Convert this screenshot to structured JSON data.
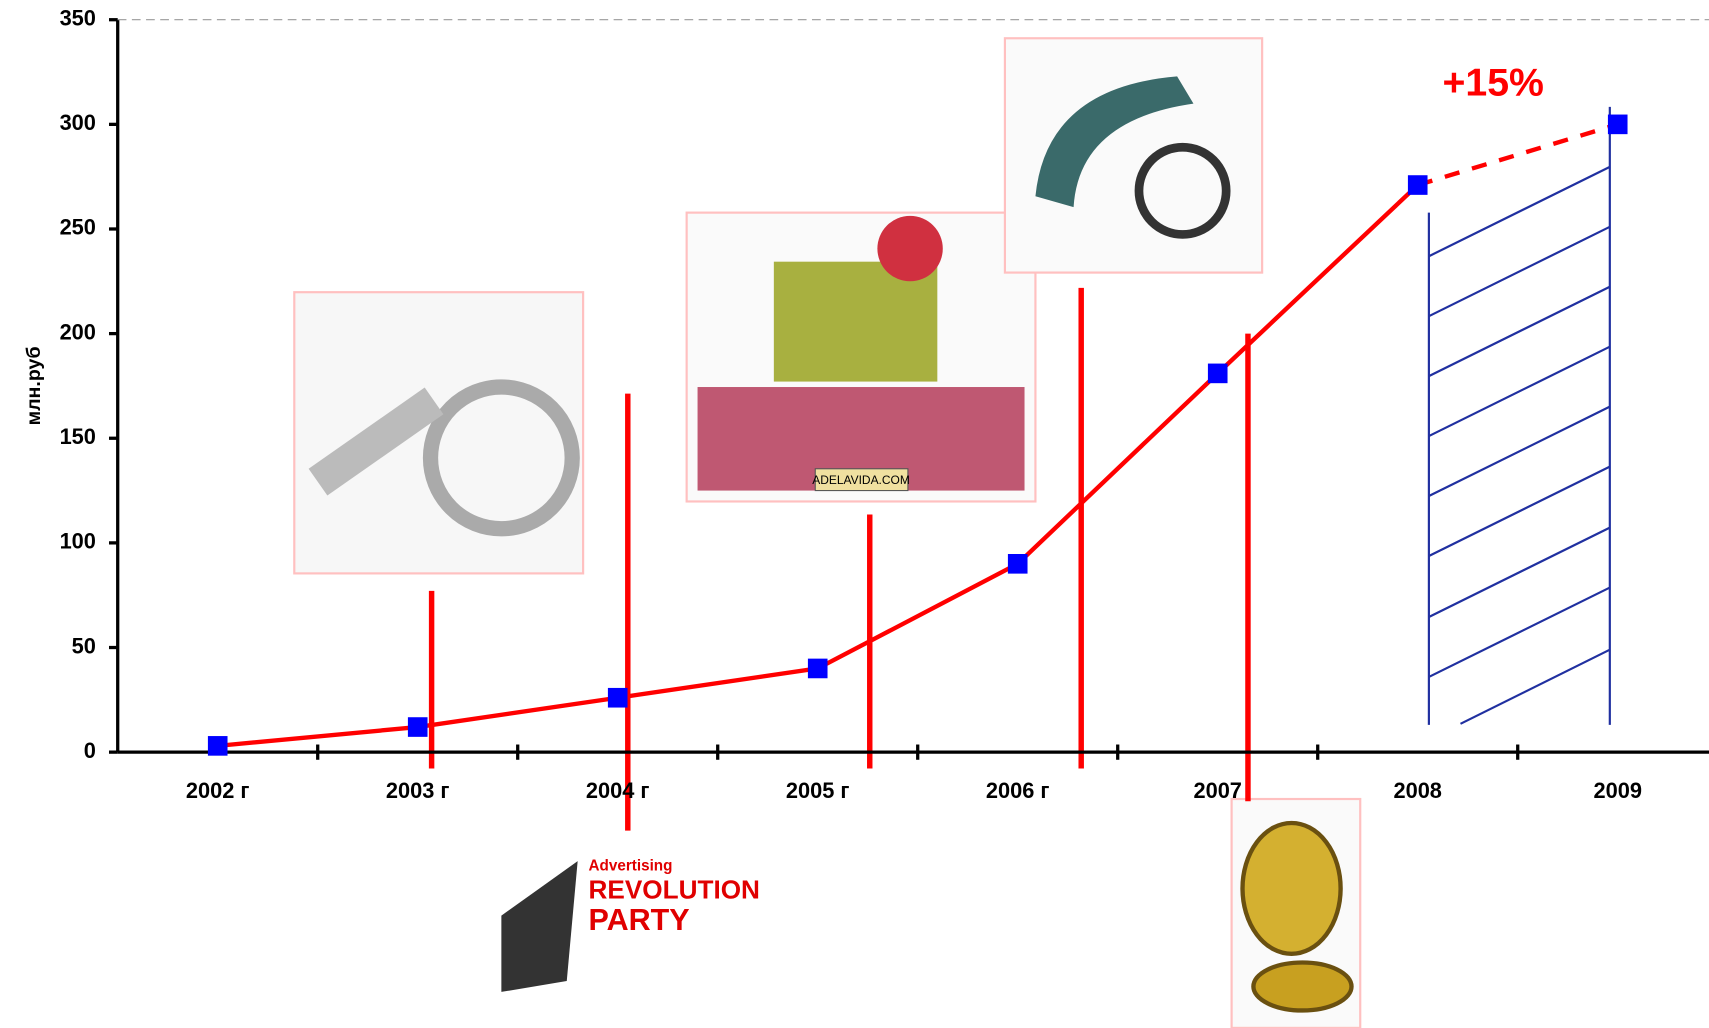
{
  "chart_data": {
    "type": "line",
    "y_label": "млн.руб",
    "annotation": "+15%",
    "categories": [
      "2002 г",
      "2003 г",
      "2004 г",
      "2005 г",
      "2006 г",
      "2007",
      "2008",
      "2009"
    ],
    "series": [
      {
        "color": "#ff0000",
        "marker_color": "#0000ff",
        "values": [
          3,
          12,
          26,
          40,
          90,
          181,
          271,
          300
        ]
      }
    ],
    "dashed_last_segment": true,
    "ylim": [
      0,
      350
    ],
    "yticks": [
      0,
      50,
      100,
      150,
      200,
      250,
      300,
      350
    ],
    "illustration_texts": [
      "ADELAVIDA.COM",
      "Advertising",
      "REVOLUTION",
      "PARTY"
    ]
  }
}
